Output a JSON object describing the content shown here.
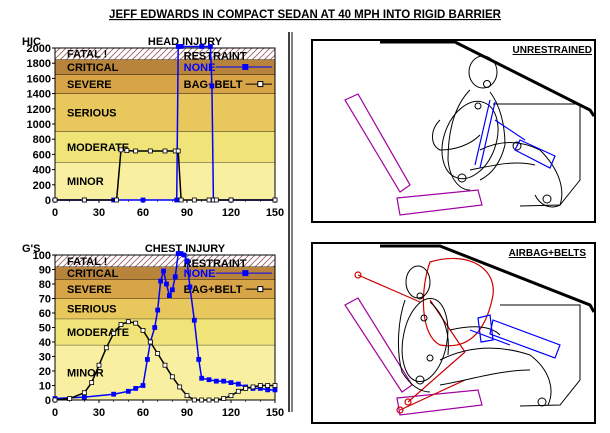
{
  "title": "JEFF EDWARDS IN COMPACT SEDAN AT 40 MPH INTO RIGID BARRIER",
  "colors": {
    "fatal": "#ffffff",
    "critical": "#b8843c",
    "severe": "#d8a448",
    "serious": "#e8c85c",
    "moderate": "#f0e478",
    "minor": "#f8f0a0",
    "unrestrained": "#0000ff",
    "restrained": "#000000",
    "vehicle": "#000000",
    "seat": "#a000a0",
    "belt": "#cc0000"
  },
  "chart_data": [
    {
      "type": "line",
      "title": "HEAD INJURY",
      "ylabel": "HIC",
      "xlim": [
        0,
        150
      ],
      "ylim": [
        0,
        2000
      ],
      "xticks": [
        0,
        30,
        60,
        90,
        120,
        150
      ],
      "yticks": [
        0,
        200,
        400,
        600,
        800,
        1000,
        1200,
        1400,
        1600,
        1800,
        2000
      ],
      "zones": [
        {
          "label": "MINOR",
          "from": 0,
          "to": 500,
          "color": "#f8f0a0"
        },
        {
          "label": "MODERATE",
          "from": 500,
          "to": 900,
          "color": "#f0e478"
        },
        {
          "label": "SERIOUS",
          "from": 900,
          "to": 1400,
          "color": "#e8c85c"
        },
        {
          "label": "SEVERE",
          "from": 1400,
          "to": 1650,
          "color": "#d8a448"
        },
        {
          "label": "CRITICAL",
          "from": 1650,
          "to": 1850,
          "color": "#b8843c"
        },
        {
          "label": "FATAL !",
          "from": 1850,
          "to": 2000,
          "color": "#ffffff"
        }
      ],
      "legend": {
        "title": "RESTRAINT",
        "position": "top-right"
      },
      "series": [
        {
          "name": "NONE",
          "color": "#0000ff",
          "marker": "filled-square",
          "x": [
            0,
            20,
            40,
            60,
            83,
            84,
            86,
            100,
            106,
            107,
            108,
            120,
            150
          ],
          "y": [
            0,
            0,
            0,
            0,
            0,
            2020,
            2020,
            2020,
            2020,
            1500,
            0,
            0,
            0
          ]
        },
        {
          "name": "BAG+BELT",
          "color": "#000000",
          "marker": "open-square",
          "x": [
            0,
            20,
            42,
            45,
            49,
            55,
            65,
            75,
            82,
            84,
            86,
            95,
            105,
            108,
            110,
            120,
            150
          ],
          "y": [
            0,
            0,
            0,
            660,
            650,
            645,
            645,
            645,
            645,
            645,
            0,
            0,
            0,
            0,
            0,
            0,
            0
          ]
        }
      ]
    },
    {
      "type": "line",
      "title": "CHEST INJURY",
      "ylabel": "G'S",
      "xlim": [
        0,
        150
      ],
      "ylim": [
        0,
        100
      ],
      "xticks": [
        0,
        30,
        60,
        90,
        120,
        150
      ],
      "yticks": [
        0,
        10,
        20,
        30,
        40,
        50,
        60,
        70,
        80,
        90,
        100
      ],
      "zones": [
        {
          "label": "MINOR",
          "from": 0,
          "to": 38,
          "color": "#f8f0a0"
        },
        {
          "label": "MODERATE",
          "from": 38,
          "to": 56,
          "color": "#f0e478"
        },
        {
          "label": "SERIOUS",
          "from": 56,
          "to": 70,
          "color": "#e8c85c"
        },
        {
          "label": "SEVERE",
          "from": 70,
          "to": 83,
          "color": "#d8a448"
        },
        {
          "label": "CRITICAL",
          "from": 83,
          "to": 92,
          "color": "#b8843c"
        },
        {
          "label": "FATAL !",
          "from": 92,
          "to": 100,
          "color": "#ffffff"
        }
      ],
      "legend": {
        "title": "RESTRAINT",
        "position": "top-right"
      },
      "series": [
        {
          "name": "NONE",
          "color": "#0000ff",
          "marker": "filled-square",
          "x": [
            0,
            20,
            40,
            50,
            55,
            60,
            63,
            65,
            68,
            70,
            72,
            74,
            76,
            78,
            80,
            82,
            84,
            86,
            88,
            90,
            92,
            95,
            98,
            100,
            105,
            110,
            115,
            120,
            125,
            130,
            135,
            140,
            145,
            150
          ],
          "y": [
            1,
            2,
            4,
            6,
            8,
            10,
            28,
            40,
            50,
            62,
            82,
            89,
            80,
            72,
            76,
            85,
            101,
            101,
            100,
            96,
            78,
            55,
            28,
            15,
            14,
            13,
            13,
            12,
            11,
            9,
            8,
            8,
            7,
            7
          ]
        },
        {
          "name": "BAG+BELT",
          "color": "#000000",
          "marker": "open-square",
          "x": [
            0,
            10,
            20,
            25,
            30,
            35,
            40,
            45,
            50,
            55,
            60,
            65,
            70,
            75,
            80,
            85,
            90,
            95,
            100,
            105,
            110,
            115,
            120,
            125,
            130,
            135,
            140,
            145,
            150
          ],
          "y": [
            0,
            1,
            5,
            12,
            24,
            36,
            46,
            52,
            54,
            53,
            48,
            40,
            32,
            24,
            16,
            9,
            3,
            0,
            0,
            0,
            0,
            1,
            3,
            6,
            8,
            9,
            10,
            10,
            10
          ]
        }
      ]
    }
  ],
  "panels": {
    "unrestrained_label": "UNRESTRAINED",
    "airbag_label": "AIRBAG+BELTS"
  }
}
